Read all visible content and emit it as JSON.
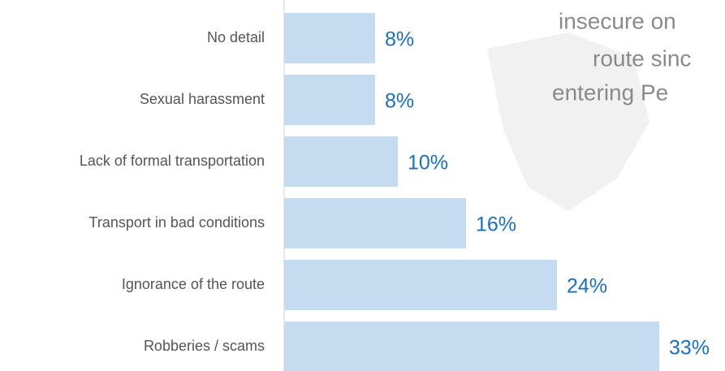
{
  "chart_data": {
    "type": "hbar",
    "title_lines": [
      "insecure on",
      "route sinc",
      "entering Pe"
    ],
    "categories": [
      "No detail",
      "Sexual harassment",
      "Lack of formal transportation",
      "Transport in bad conditions",
      "Ignorance of the route",
      "Robberies / scams"
    ],
    "values": [
      8,
      8,
      10,
      16,
      24,
      33
    ],
    "value_labels": [
      "8%",
      "8%",
      "10%",
      "16%",
      "24%",
      "33%"
    ],
    "color": "#c5dbef"
  }
}
